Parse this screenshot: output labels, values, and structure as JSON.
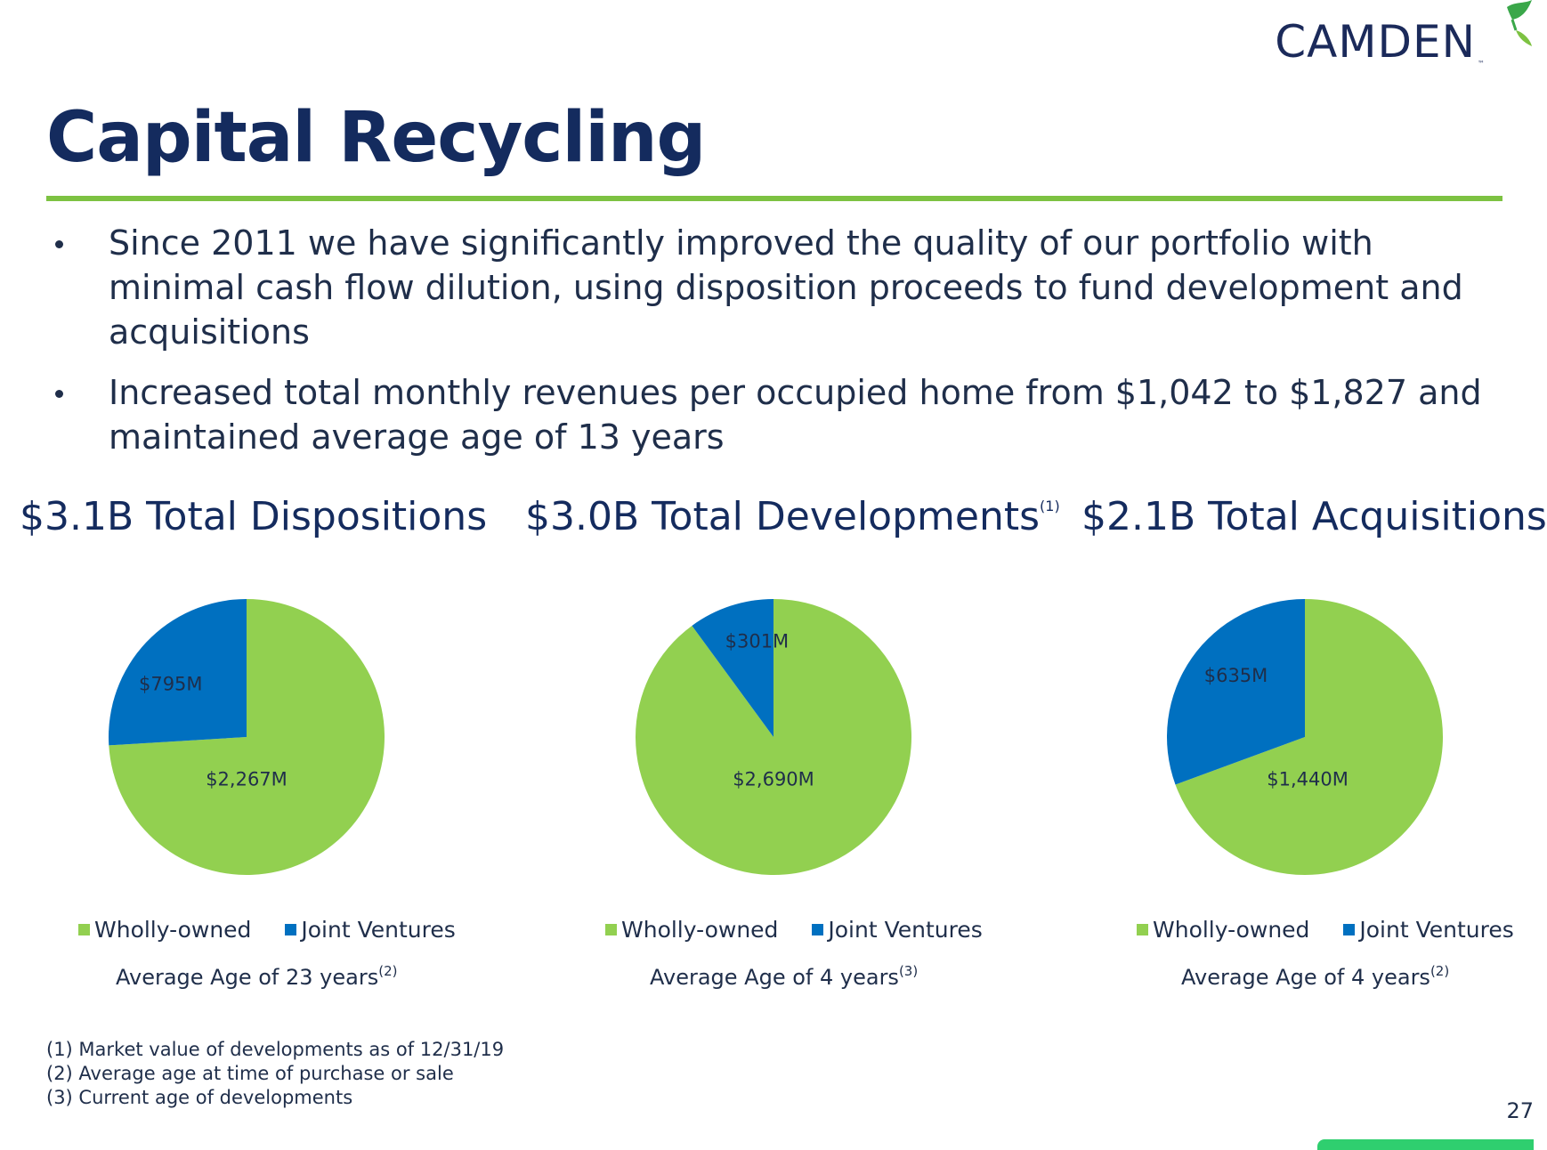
{
  "logo": {
    "text": "CAMDEN",
    "tm": "™"
  },
  "title": "Capital Recycling",
  "bullets": [
    "Since 2011 we have significantly improved the quality of our portfolio with minimal cash flow dilution, using disposition proceeds to fund development and acquisitions",
    "Increased total monthly revenues per occupied home from $1,042 to $1,827 and maintained average age of 13 years"
  ],
  "colors": {
    "wholly_owned": "#92d050",
    "joint_ventures": "#0070c0",
    "title": "#142b5e",
    "rule": "#7dc242"
  },
  "panels": [
    {
      "title": "$3.1B Total Dispositions",
      "title_sup": "",
      "legend": [
        "Wholly-owned",
        "Joint Ventures"
      ],
      "avg_text": "Average Age of 23 years",
      "avg_sup": "(2)"
    },
    {
      "title": "$3.0B Total Developments",
      "title_sup": "(1)",
      "legend": [
        "Wholly-owned",
        "Joint Ventures"
      ],
      "avg_text": "Average Age of 4 years",
      "avg_sup": "(3)"
    },
    {
      "title": "$2.1B Total Acquisitions",
      "title_sup": "",
      "legend": [
        "Wholly-owned",
        "Joint Ventures"
      ],
      "avg_text": "Average Age of 4 years",
      "avg_sup": "(2)"
    }
  ],
  "chart_data": [
    {
      "type": "pie",
      "title": "$3.1B Total Dispositions",
      "categories": [
        "Wholly-owned",
        "Joint Ventures"
      ],
      "values": [
        2267,
        795
      ],
      "labels": [
        "$2,267M",
        "$795M"
      ]
    },
    {
      "type": "pie",
      "title": "$3.0B Total Developments",
      "categories": [
        "Wholly-owned",
        "Joint Ventures"
      ],
      "values": [
        2690,
        301
      ],
      "labels": [
        "$2,690M",
        "$301M"
      ]
    },
    {
      "type": "pie",
      "title": "$2.1B Total Acquisitions",
      "categories": [
        "Wholly-owned",
        "Joint Ventures"
      ],
      "values": [
        1440,
        635
      ],
      "labels": [
        "$1,440M",
        "$635M"
      ]
    }
  ],
  "footnotes": [
    "(1) Market value of developments as of 12/31/19",
    "(2) Average age at time of purchase or sale",
    "(3) Current age of developments"
  ],
  "page_number": "27"
}
